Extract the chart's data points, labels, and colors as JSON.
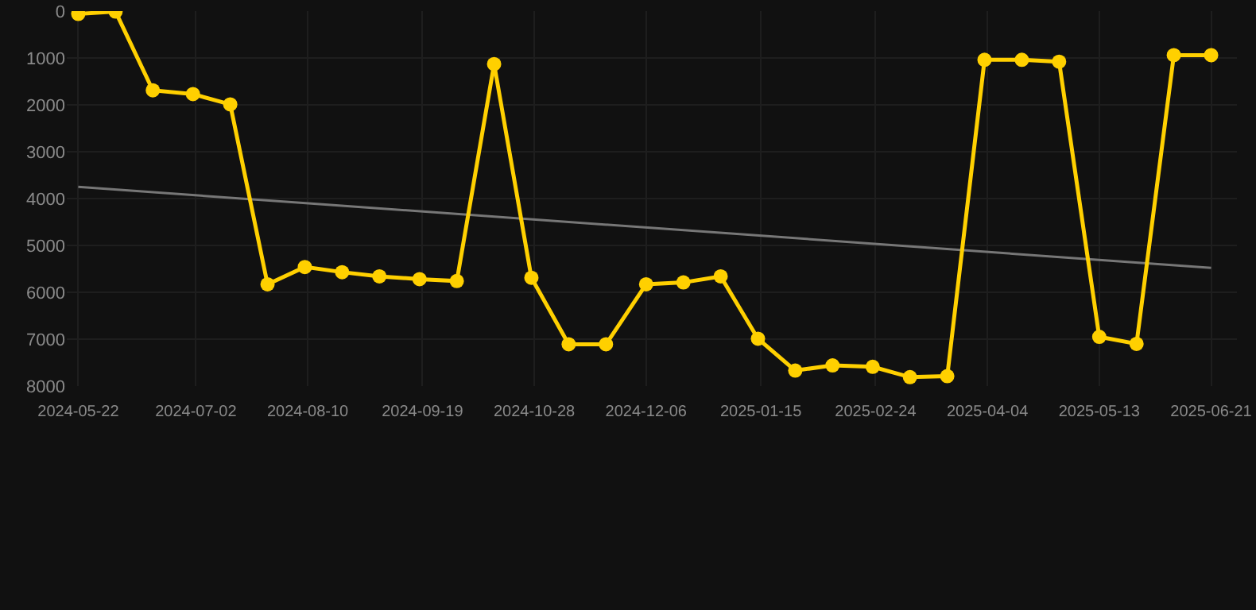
{
  "chart_data": {
    "type": "line",
    "x": [
      "2024-05-22",
      "2024-06-04",
      "2024-06-17",
      "2024-07-01",
      "2024-07-14",
      "2024-07-27",
      "2024-08-09",
      "2024-08-22",
      "2024-09-04",
      "2024-09-18",
      "2024-10-01",
      "2024-10-14",
      "2024-10-27",
      "2024-11-09",
      "2024-11-22",
      "2024-12-06",
      "2024-12-19",
      "2025-01-01",
      "2025-01-14",
      "2025-01-27",
      "2025-02-09",
      "2025-02-23",
      "2025-03-08",
      "2025-03-21",
      "2025-04-03",
      "2025-04-16",
      "2025-04-29",
      "2025-05-13",
      "2025-05-26",
      "2025-06-08",
      "2025-06-21"
    ],
    "series": [
      {
        "color": "#ffd000",
        "marker": "circle",
        "values": [
          60,
          10,
          1690,
          1770,
          1990,
          5830,
          5460,
          5570,
          5660,
          5720,
          5760,
          1130,
          5690,
          7110,
          7110,
          5830,
          5790,
          5660,
          6990,
          7670,
          7560,
          7590,
          7810,
          7790,
          1040,
          1040,
          1080,
          6950,
          7100,
          940,
          940
        ]
      },
      {
        "type": "line",
        "color": "#777777",
        "marker": "none",
        "x": [
          "2024-05-22",
          "2025-06-21"
        ],
        "values": [
          3750,
          5480
        ]
      }
    ],
    "ylim": [
      8000,
      0
    ],
    "yticks": [
      0,
      1000,
      2000,
      3000,
      4000,
      5000,
      6000,
      7000,
      8000
    ],
    "xlim": [
      "2024-05-18",
      "2025-06-30"
    ],
    "xticks": [
      "2024-05-22",
      "2024-07-02",
      "2024-08-10",
      "2024-09-19",
      "2024-10-28",
      "2024-12-06",
      "2025-01-15",
      "2025-02-24",
      "2025-04-04",
      "2025-05-13",
      "2025-06-21"
    ],
    "grid": true
  }
}
